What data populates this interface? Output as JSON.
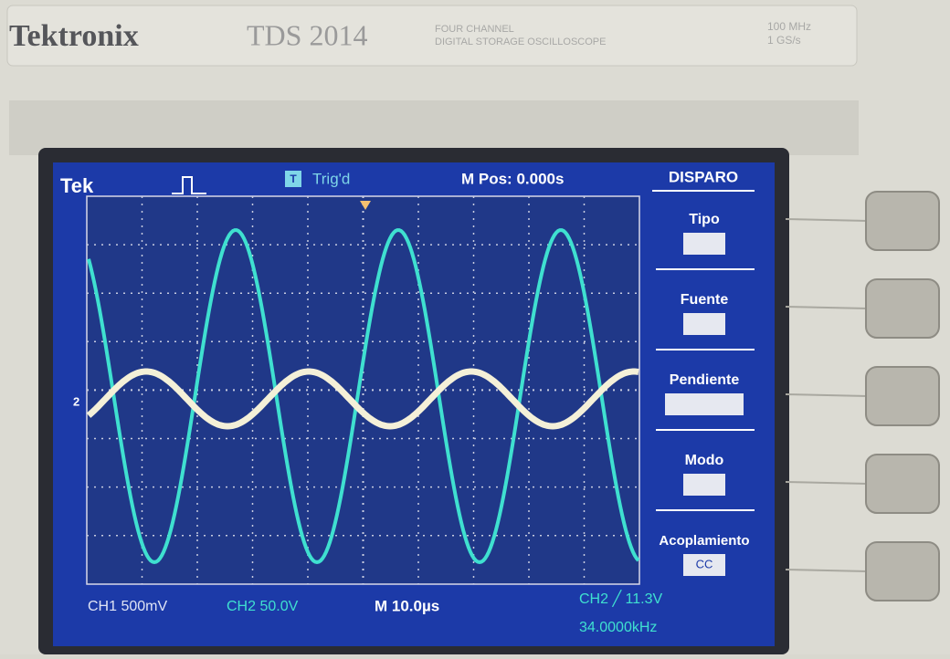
{
  "header": {
    "brand": "Tektronix",
    "model": "TDS 2014",
    "description": [
      "FOUR CHANNEL",
      "DIGITAL STORAGE OSCILLOSCOPE"
    ],
    "specs": [
      "100 MHz",
      "1 GS/s"
    ]
  },
  "screen": {
    "status": {
      "logo": "Tek",
      "trigger_icon": "T",
      "trigger_state": "Trig'd",
      "position": "M Pos: 0.000s"
    },
    "channel_marker": "2",
    "menu": {
      "title": "DISPARO",
      "items": [
        {
          "label": "Tipo"
        },
        {
          "label": "Fuente"
        },
        {
          "label": "Pendiente"
        },
        {
          "label": "Modo"
        },
        {
          "label": "Acoplamiento",
          "value": "CC"
        }
      ]
    },
    "readout": {
      "ch1": "CH1 500mV",
      "ch2": "CH2 50.0V",
      "timebase": "M 10.0µs",
      "trigger": "CH2 ╱ 11.3V",
      "frequency": "34.0000kHz"
    }
  }
}
